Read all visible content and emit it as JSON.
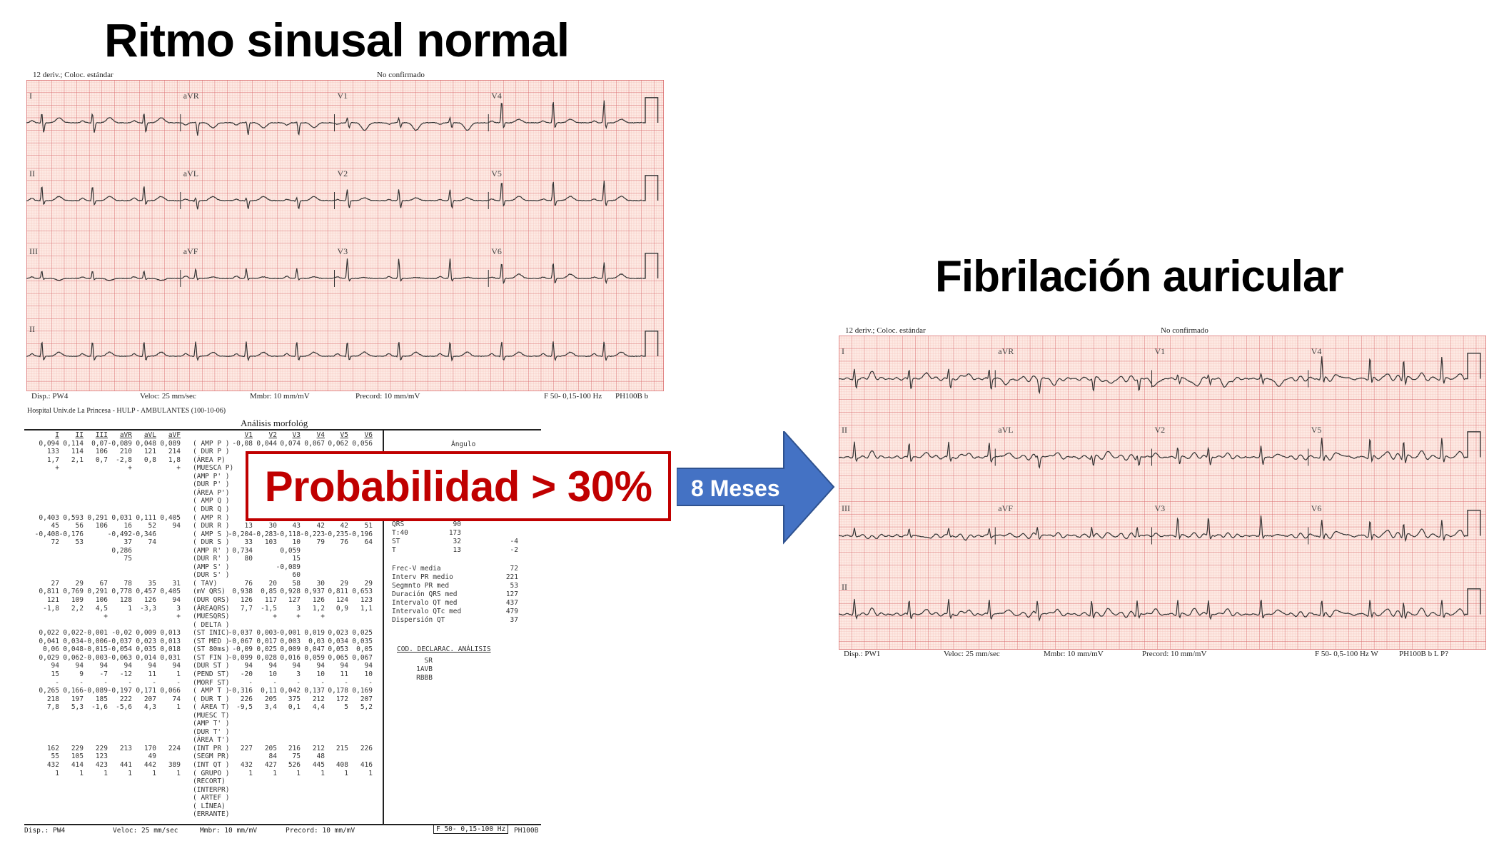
{
  "left_panel": {
    "title": "Ritmo sinusal normal",
    "header_left": "12 deriv.; Coloc. estándar",
    "header_right": "No confirmado",
    "lead_rows": [
      [
        "I",
        "aVR",
        "V1",
        "V4"
      ],
      [
        "II",
        "aVL",
        "V2",
        "V5"
      ],
      [
        "III",
        "aVF",
        "V3",
        "V6"
      ],
      [
        "II"
      ]
    ],
    "rhythm": "sinus",
    "footer": {
      "disp": "Disp.: PW4",
      "veloc": "Veloc: 25 mm/sec",
      "mmbr": "Mmbr: 10 mm/mV",
      "precord": "Precord: 10 mm/mV",
      "filter": "F 50- 0,15-100 Hz",
      "device": "PH100B b"
    },
    "hospital": "Hospital Univ.de La Princesa - HULP - AMBULANTES (100-10-06)",
    "analysis_title": "Análisis morfológ",
    "table": {
      "left_headers": [
        "I",
        "II",
        "III",
        "aVR",
        "aVL",
        "aVF"
      ],
      "right_headers": [
        "V1",
        "V2",
        "V3",
        "V4",
        "V5",
        "V6"
      ],
      "rows": [
        {
          "label": "( AMP P )",
          "left": [
            "0,094",
            "0,114",
            "0,07",
            "-0,089",
            "0,048",
            "0,089"
          ],
          "right": [
            "-0,08",
            "0,044",
            "0,074",
            "0,067",
            "0,062",
            "0,056"
          ]
        },
        {
          "label": "( DUR P )",
          "left": [
            "133",
            "114",
            "106",
            "210",
            "121",
            "214"
          ],
          "right": []
        },
        {
          "label": "(ÁREA P)",
          "left": [
            "1,7",
            "2,1",
            "0,7",
            "-2,8",
            "0,8",
            "1,8"
          ],
          "right": []
        },
        {
          "label": "(MUESCA P)",
          "left": [
            "+",
            "",
            "",
            "+",
            "",
            "+"
          ],
          "right": []
        },
        {
          "label": "(AMP P' )",
          "left": [],
          "right": []
        },
        {
          "label": "(DUR P' )",
          "left": [],
          "right": []
        },
        {
          "label": "(ÁREA P')",
          "left": [],
          "right": []
        },
        {
          "label": "( AMP Q )",
          "left": [],
          "right": []
        },
        {
          "label": "( DUR Q )",
          "left": [],
          "right": []
        },
        {
          "label": "( AMP R )",
          "left": [
            "0,403",
            "0,593",
            "0,291",
            "0,031",
            "0,111",
            "0,405"
          ],
          "right": []
        },
        {
          "label": "( DUR R )",
          "left": [
            "45",
            "56",
            "106",
            "16",
            "52",
            "94"
          ],
          "right": [
            "13",
            "30",
            "43",
            "42",
            "42",
            "51"
          ]
        },
        {
          "label": "( AMP S )",
          "left": [
            "-0,408",
            "-0,176",
            "",
            "-0,492",
            "-0,346",
            ""
          ],
          "right": [
            "-0,204",
            "-0,283",
            "-0,118",
            "-0,223",
            "-0,235",
            "-0,196"
          ]
        },
        {
          "label": "( DUR S )",
          "left": [
            "72",
            "53",
            "",
            "37",
            "74",
            ""
          ],
          "right": [
            "33",
            "103",
            "10",
            "79",
            "76",
            "64"
          ]
        },
        {
          "label": "(AMP R' )",
          "left": [
            "",
            "",
            "",
            "0,286",
            "",
            ""
          ],
          "right": [
            "0,734",
            "",
            "0,059",
            "",
            "",
            ""
          ]
        },
        {
          "label": "(DUR R' )",
          "left": [
            "",
            "",
            "",
            "75",
            "",
            ""
          ],
          "right": [
            "80",
            "",
            "15",
            "",
            "",
            ""
          ]
        },
        {
          "label": "(AMP S' )",
          "left": [],
          "right": [
            "",
            "",
            "-0,089",
            "",
            "",
            ""
          ]
        },
        {
          "label": "(DUR S' )",
          "left": [],
          "right": [
            "",
            "",
            "60",
            "",
            "",
            ""
          ]
        },
        {
          "label": "( TAV)",
          "left": [
            "27",
            "29",
            "67",
            "78",
            "35",
            "31"
          ],
          "right": [
            "76",
            "20",
            "58",
            "30",
            "29",
            "29"
          ]
        },
        {
          "label": "(mV QRS)",
          "left": [
            "0,811",
            "0,769",
            "0,291",
            "0,778",
            "0,457",
            "0,405"
          ],
          "right": [
            "0,938",
            "0,85",
            "0,928",
            "0,937",
            "0,811",
            "0,653"
          ]
        },
        {
          "label": "(DUR QRS)",
          "left": [
            "121",
            "109",
            "106",
            "128",
            "126",
            "94"
          ],
          "right": [
            "126",
            "117",
            "127",
            "126",
            "124",
            "123"
          ]
        },
        {
          "label": "(ÁREAQRS)",
          "left": [
            "-1,8",
            "2,2",
            "4,5",
            "1",
            "-3,3",
            "3"
          ],
          "right": [
            "7,7",
            "-1,5",
            "3",
            "1,2",
            "0,9",
            "1,1"
          ]
        },
        {
          "label": "(MUESQRS)",
          "left": [
            "",
            "",
            "+",
            "",
            "",
            "+"
          ],
          "right": [
            "",
            "+",
            "+",
            "+",
            "",
            ""
          ]
        },
        {
          "label": "( DELTA )",
          "left": [],
          "right": []
        },
        {
          "label": "(ST INIC)",
          "left": [
            "0,022",
            "0,022",
            "-0,001",
            "-0,02",
            "0,009",
            "0,013"
          ],
          "right": [
            "-0,037",
            "0,003",
            "-0,001",
            "0,019",
            "0,023",
            "0,025"
          ]
        },
        {
          "label": "(ST MED )",
          "left": [
            "0,041",
            "0,034",
            "-0,006",
            "-0,037",
            "0,023",
            "0,013"
          ],
          "right": [
            "-0,067",
            "0,017",
            "0,003",
            "0,03",
            "0,034",
            "0,035"
          ]
        },
        {
          "label": "(ST 80ms)",
          "left": [
            "0,06",
            "0,048",
            "-0,015",
            "-0,054",
            "0,035",
            "0,018"
          ],
          "right": [
            "-0,09",
            "0,025",
            "0,009",
            "0,047",
            "0,053",
            "0,05"
          ]
        },
        {
          "label": "(ST FIN )",
          "left": [
            "0,029",
            "0,062",
            "-0,003",
            "-0,063",
            "0,014",
            "0,031"
          ],
          "right": [
            "-0,099",
            "0,028",
            "0,016",
            "0,059",
            "0,065",
            "0,067"
          ]
        },
        {
          "label": "(DUR ST )",
          "left": [
            "94",
            "94",
            "94",
            "94",
            "94",
            "94"
          ],
          "right": [
            "94",
            "94",
            "94",
            "94",
            "94",
            "94"
          ]
        },
        {
          "label": "(PEND ST)",
          "left": [
            "15",
            "9",
            "-7",
            "-12",
            "11",
            "1"
          ],
          "right": [
            "-20",
            "10",
            "3",
            "10",
            "11",
            "10"
          ]
        },
        {
          "label": "(MORF ST)",
          "left": [
            "-",
            "-",
            "-",
            "-",
            "-",
            "-"
          ],
          "right": [
            "-",
            "-",
            "-",
            "-",
            "-",
            "-"
          ]
        },
        {
          "label": "( AMP T )",
          "left": [
            "0,265",
            "0,166",
            "-0,089",
            "-0,197",
            "0,171",
            "0,066"
          ],
          "right": [
            "-0,316",
            "0,11",
            "0,042",
            "0,137",
            "0,178",
            "0,169"
          ]
        },
        {
          "label": "( DUR T )",
          "left": [
            "218",
            "197",
            "185",
            "222",
            "207",
            "74"
          ],
          "right": [
            "226",
            "205",
            "375",
            "212",
            "172",
            "207"
          ]
        },
        {
          "label": "( ÁREA T)",
          "left": [
            "7,8",
            "5,3",
            "-1,6",
            "-5,6",
            "4,3",
            "1"
          ],
          "right": [
            "-9,5",
            "3,4",
            "0,1",
            "4,4",
            "5",
            "5,2"
          ]
        },
        {
          "label": "(MUESC T)",
          "left": [],
          "right": []
        },
        {
          "label": "(AMP T' )",
          "left": [],
          "right": []
        },
        {
          "label": "(DUR T' )",
          "left": [],
          "right": []
        },
        {
          "label": "(ÁREA T')",
          "left": [],
          "right": []
        },
        {
          "label": "(INT PR )",
          "left": [
            "162",
            "229",
            "229",
            "213",
            "170",
            "224"
          ],
          "right": [
            "227",
            "205",
            "216",
            "212",
            "215",
            "226"
          ]
        },
        {
          "label": "(SEGM PR)",
          "left": [
            "55",
            "105",
            "123",
            "",
            "49",
            ""
          ],
          "right": [
            "",
            "84",
            "75",
            "48",
            "",
            ""
          ]
        },
        {
          "label": "(INT QT )",
          "left": [
            "432",
            "414",
            "423",
            "441",
            "442",
            "389"
          ],
          "right": [
            "432",
            "427",
            "526",
            "445",
            "408",
            "416"
          ]
        },
        {
          "label": "( GRUPO )",
          "left": [
            "1",
            "1",
            "1",
            "1",
            "1",
            "1"
          ],
          "right": [
            "1",
            "1",
            "1",
            "1",
            "1",
            "1"
          ]
        },
        {
          "label": "(RECORT)",
          "left": [],
          "right": []
        },
        {
          "label": "(INTERPR)",
          "left": [],
          "right": []
        },
        {
          "label": "( ARTEF )",
          "left": [],
          "right": []
        },
        {
          "label": "( LÍNEA)",
          "left": [],
          "right": []
        },
        {
          "label": "(ERRANTE)",
          "left": [],
          "right": []
        }
      ]
    },
    "angles": {
      "title": "Ángulo",
      "rows": [
        [
          "QRS",
          "90",
          ""
        ],
        [
          "T:40",
          "173",
          ""
        ],
        [
          "ST",
          "32",
          "-4"
        ],
        [
          "T",
          "13",
          "-2"
        ]
      ]
    },
    "measures": [
      [
        "Frec-V media",
        "72"
      ],
      [
        "Interv PR medio",
        "221"
      ],
      [
        "Segmnto PR med",
        "53"
      ],
      [
        "Duración QRS med",
        "127"
      ],
      [
        "Intervalo QT med",
        "437"
      ],
      [
        "Intervalo QTc med",
        "479"
      ],
      [
        "Dispersión QT",
        "37"
      ]
    ],
    "declarations": {
      "title": "COD. DECLARAC. ANÁLISIS",
      "codes": [
        "SR",
        "1AVB",
        "RBBB"
      ]
    },
    "bottom_footer": {
      "disp": "Disp.: PW4",
      "veloc": "Veloc: 25 mm/sec",
      "mmbr": "Mmbr: 10 mm/mV",
      "precord": "Precord: 10 mm/mV",
      "filter": "F 50- 0,15-100 Hz",
      "device": "PH100B"
    }
  },
  "probability_callout": {
    "text": "Probabilidad > 30%",
    "color": "#c00000"
  },
  "arrow": {
    "label": "8 Meses",
    "color": "#4472c4"
  },
  "right_panel": {
    "title": "Fibrilación auricular",
    "header_left": "12 deriv.; Coloc. estándar",
    "header_right": "No confirmado",
    "lead_rows": [
      [
        "I",
        "aVR",
        "V1",
        "V4"
      ],
      [
        "II",
        "aVL",
        "V2",
        "V5"
      ],
      [
        "III",
        "aVF",
        "V3",
        "V6"
      ],
      [
        "II"
      ]
    ],
    "rhythm": "atrial-fibrillation",
    "footer": {
      "disp": "Disp.: PW1",
      "veloc": "Veloc: 25 mm/sec",
      "mmbr": "Mmbr: 10 mm/mV",
      "precord": "Precord: 10 mm/mV",
      "filter": "F 50- 0,5-100 Hz W",
      "device": "PH100B b L P?"
    }
  },
  "colors": {
    "grid_bg": "#fdeae4",
    "grid_minor": "#f3bcb4",
    "grid_major": "#d8686a",
    "trace": "#333333"
  }
}
